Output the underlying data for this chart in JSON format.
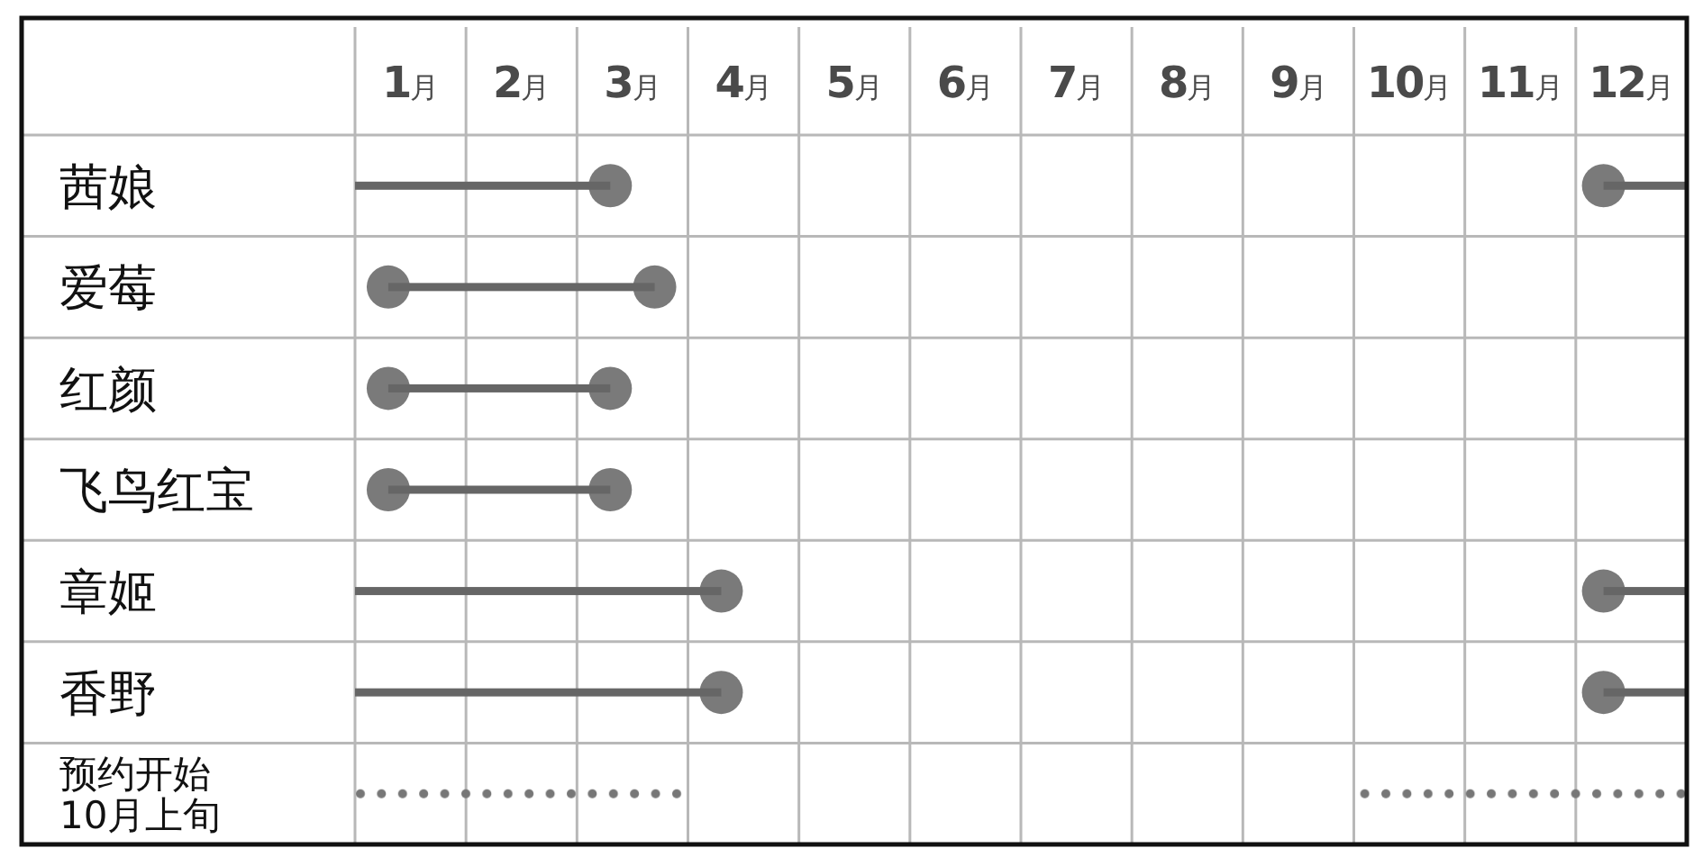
{
  "chart_data": {
    "type": "bar",
    "orientation": "horizontal",
    "categories": [
      "茜娘",
      "爱莓",
      "红颜",
      "飞鸟红宝",
      "章姬",
      "香野",
      "预约开始\n10月上旬"
    ],
    "series": [
      {
        "type": "scatter",
        "color": "#7a7a7a",
        "marker": "circle",
        "values": [
          2.8,
          3.2,
          2.8,
          2.8,
          3.8,
          3.8,
          null
        ]
      },
      {
        "type": "scatter",
        "color": "#7a7a7a",
        "marker": "circle",
        "values": [
          null,
          0.8,
          0.8,
          0.8,
          null,
          null,
          null
        ]
      },
      {
        "type": "scatter",
        "color": "#7a7a7a",
        "marker": "circle",
        "values": [
          11.75,
          null,
          null,
          null,
          11.75,
          11.75,
          null
        ]
      },
      {
        "color": "#666666",
        "line_style": "solid",
        "base": [
          0.5,
          0.8,
          0.8,
          0.8,
          0.5,
          0.5,
          null
        ],
        "values": [
          2.3,
          2.4,
          2.0,
          2.0,
          3.3,
          3.3,
          null
        ]
      },
      {
        "color": "#666666",
        "line_style": "solid",
        "base": [
          11.75,
          null,
          null,
          null,
          11.75,
          11.75,
          null
        ],
        "values": [
          0.75,
          null,
          null,
          null,
          0.75,
          0.75,
          null
        ]
      },
      {
        "color": "#777777",
        "line_style": "dotted",
        "base": [
          null,
          null,
          null,
          null,
          null,
          null,
          0.5
        ],
        "values": [
          null,
          null,
          null,
          null,
          null,
          null,
          2.95
        ]
      },
      {
        "color": "#777777",
        "line_style": "dotted",
        "base": [
          null,
          null,
          null,
          null,
          null,
          null,
          9.55
        ],
        "values": [
          null,
          null,
          null,
          null,
          null,
          null,
          2.95
        ]
      }
    ],
    "xlim": [
      0.5,
      12.5
    ],
    "xticks": [
      {
        "value": 0.5,
        "label": null
      },
      {
        "value": 1,
        "label": "1月"
      },
      {
        "value": 1.5,
        "label": null
      },
      {
        "value": 2,
        "label": "2月"
      },
      {
        "value": 2.5,
        "label": null
      },
      {
        "value": 3,
        "label": "3月"
      },
      {
        "value": 3.5,
        "label": null
      },
      {
        "value": 4,
        "label": "4月"
      },
      {
        "value": 4.5,
        "label": null
      },
      {
        "value": 5,
        "label": "5月"
      },
      {
        "value": 5.5,
        "label": null
      },
      {
        "value": 6,
        "label": "6月"
      },
      {
        "value": 6.5,
        "label": null
      },
      {
        "value": 7,
        "label": "7月"
      },
      {
        "value": 7.5,
        "label": null
      },
      {
        "value": 8,
        "label": "8月"
      },
      {
        "value": 8.5,
        "label": null
      },
      {
        "value": 9,
        "label": "9月"
      },
      {
        "value": 9.5,
        "label": null
      },
      {
        "value": 10,
        "label": "10月"
      },
      {
        "value": 10.5,
        "label": null
      },
      {
        "value": 11,
        "label": "11月"
      },
      {
        "value": 11.5,
        "label": null
      },
      {
        "value": 12,
        "label": "12月"
      },
      {
        "value": 12.5,
        "label": null
      }
    ],
    "grid": true
  }
}
